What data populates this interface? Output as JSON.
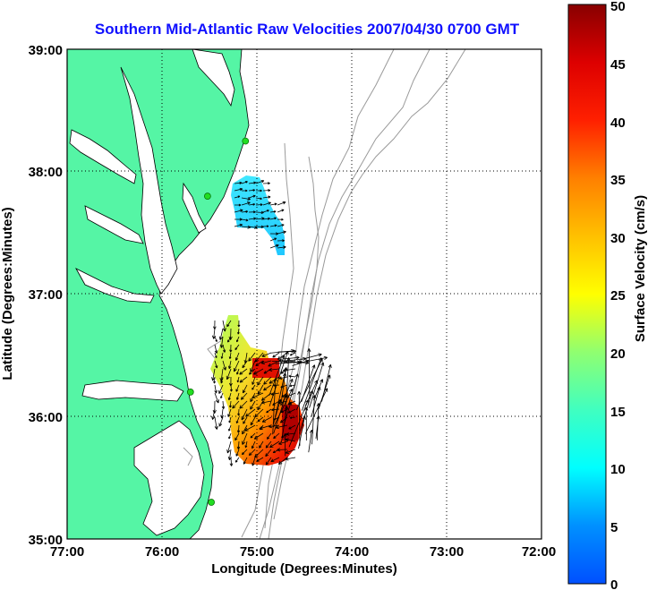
{
  "title": "Southern Mid-Atlantic Raw Velocities 2007/04/30 0700 GMT",
  "x_axis": {
    "label": "Longitude (Degrees:Minutes)",
    "ticks": [
      "77:00",
      "76:00",
      "75:00",
      "74:00",
      "73:00",
      "72:00"
    ]
  },
  "y_axis": {
    "label": "Latitude (Degrees:Minutes)",
    "ticks": [
      "39:00",
      "38:00",
      "37:00",
      "36:00",
      "35:00"
    ]
  },
  "colorbar": {
    "label": "Surface Velocity (cm/s)",
    "ticks": [
      "50",
      "45",
      "40",
      "35",
      "30",
      "25",
      "20",
      "15",
      "10",
      "5",
      "0"
    ],
    "min": 0,
    "max": 50
  },
  "colors": {
    "land": "#55f5a5",
    "title": "#1010ff",
    "stations": "#22dd22",
    "bathymetry": "#9a9a9a"
  },
  "map": {
    "lon_range": [
      -77,
      -72
    ],
    "lat_range": [
      35,
      39
    ],
    "grid": "dotted",
    "station_markers": [
      {
        "lon": -75.12,
        "lat": 38.25
      },
      {
        "lon": -75.52,
        "lat": 37.8
      },
      {
        "lon": -75.7,
        "lat": 36.2
      },
      {
        "lon": -75.48,
        "lat": 35.3
      }
    ],
    "velocity_patches": [
      {
        "region": "north",
        "lon": [
          -75.2,
          -74.65
        ],
        "lat": [
          37.2,
          37.95
        ],
        "speed_cm_s": [
          9,
          13
        ]
      },
      {
        "region": "south",
        "lon": [
          -75.5,
          -74.4
        ],
        "lat": [
          35.6,
          36.85
        ],
        "speed_cm_s": [
          15,
          50
        ]
      }
    ]
  }
}
